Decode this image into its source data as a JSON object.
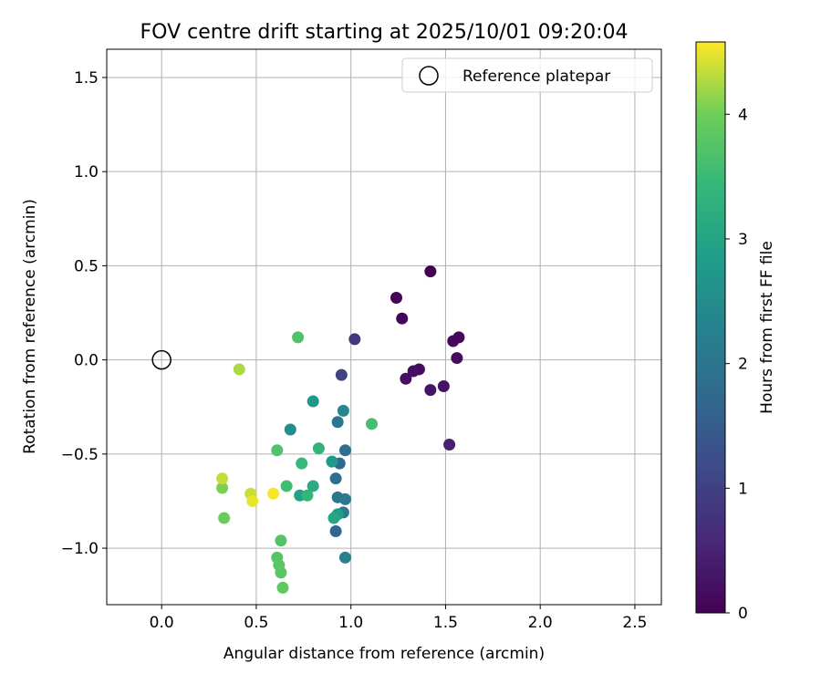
{
  "chart_data": {
    "type": "scatter",
    "title": "FOV centre drift starting at 2025/10/01 09:20:04",
    "xlabel": "Angular distance from reference (arcmin)",
    "ylabel": "Rotation from reference (arcmin)",
    "xlim": [
      -0.29,
      2.64
    ],
    "ylim": [
      -1.3,
      1.65
    ],
    "xticks": [
      0.0,
      0.5,
      1.0,
      1.5,
      2.0,
      2.5
    ],
    "xtick_labels": [
      "0.0",
      "0.5",
      "1.0",
      "1.5",
      "2.0",
      "2.5"
    ],
    "yticks": [
      -1.0,
      -0.5,
      0.0,
      0.5,
      1.0,
      1.5
    ],
    "ytick_labels": [
      "−1.0",
      "−0.5",
      "0.0",
      "0.5",
      "1.0",
      "1.5"
    ],
    "grid": true,
    "legend": {
      "position": "top-right",
      "entries": [
        "Reference platepar"
      ]
    },
    "reference_point": {
      "x": 0.0,
      "y": 0.0,
      "label": "Reference platepar"
    },
    "colorbar": {
      "label": "Hours from first FF file",
      "range": [
        0,
        4.58
      ],
      "ticks": [
        0,
        1,
        2,
        3,
        4
      ],
      "tick_labels": [
        "0",
        "1",
        "2",
        "3",
        "4"
      ],
      "colormap": "viridis"
    },
    "points": [
      {
        "x": 1.42,
        "y": 0.47,
        "h": 0.0
      },
      {
        "x": 1.24,
        "y": 0.33,
        "h": 0.05
      },
      {
        "x": 1.27,
        "y": 0.22,
        "h": 0.08
      },
      {
        "x": 1.57,
        "y": 0.12,
        "h": 0.1
      },
      {
        "x": 1.54,
        "y": 0.1,
        "h": 0.12
      },
      {
        "x": 1.56,
        "y": 0.01,
        "h": 0.15
      },
      {
        "x": 1.36,
        "y": -0.05,
        "h": 0.18
      },
      {
        "x": 1.33,
        "y": -0.06,
        "h": 0.2
      },
      {
        "x": 1.29,
        "y": -0.1,
        "h": 0.22
      },
      {
        "x": 1.49,
        "y": -0.14,
        "h": 0.25
      },
      {
        "x": 1.42,
        "y": -0.16,
        "h": 0.28
      },
      {
        "x": 1.52,
        "y": -0.45,
        "h": 0.45
      },
      {
        "x": 1.02,
        "y": 0.11,
        "h": 0.8
      },
      {
        "x": 0.95,
        "y": -0.08,
        "h": 1.05
      },
      {
        "x": 0.92,
        "y": -0.91,
        "h": 1.7
      },
      {
        "x": 0.94,
        "y": -0.55,
        "h": 1.75
      },
      {
        "x": 0.97,
        "y": -0.48,
        "h": 1.85
      },
      {
        "x": 0.92,
        "y": -0.63,
        "h": 1.9
      },
      {
        "x": 0.93,
        "y": -0.33,
        "h": 2.0
      },
      {
        "x": 0.93,
        "y": -0.73,
        "h": 2.05
      },
      {
        "x": 0.97,
        "y": -0.74,
        "h": 2.1
      },
      {
        "x": 0.96,
        "y": -0.81,
        "h": 2.15
      },
      {
        "x": 0.97,
        "y": -1.05,
        "h": 2.3
      },
      {
        "x": 0.96,
        "y": -0.27,
        "h": 2.4
      },
      {
        "x": 0.68,
        "y": -0.37,
        "h": 2.5
      },
      {
        "x": 0.8,
        "y": -0.22,
        "h": 2.7
      },
      {
        "x": 0.9,
        "y": -0.54,
        "h": 2.75
      },
      {
        "x": 0.93,
        "y": -0.82,
        "h": 2.85
      },
      {
        "x": 0.73,
        "y": -0.72,
        "h": 2.95
      },
      {
        "x": 0.91,
        "y": -0.84,
        "h": 3.05
      },
      {
        "x": 0.8,
        "y": -0.67,
        "h": 3.15
      },
      {
        "x": 0.83,
        "y": -0.47,
        "h": 3.35
      },
      {
        "x": 0.77,
        "y": -0.72,
        "h": 3.4
      },
      {
        "x": 0.74,
        "y": -0.55,
        "h": 3.45
      },
      {
        "x": 0.66,
        "y": -0.67,
        "h": 3.55
      },
      {
        "x": 1.11,
        "y": -0.34,
        "h": 3.6
      },
      {
        "x": 0.72,
        "y": 0.12,
        "h": 3.7
      },
      {
        "x": 0.61,
        "y": -0.48,
        "h": 3.72
      },
      {
        "x": 0.63,
        "y": -0.96,
        "h": 3.75
      },
      {
        "x": 0.61,
        "y": -1.05,
        "h": 3.78
      },
      {
        "x": 0.62,
        "y": -1.09,
        "h": 3.8
      },
      {
        "x": 0.63,
        "y": -1.13,
        "h": 3.82
      },
      {
        "x": 0.64,
        "y": -1.21,
        "h": 3.85
      },
      {
        "x": 0.33,
        "y": -0.84,
        "h": 3.95
      },
      {
        "x": 0.32,
        "y": -0.68,
        "h": 4.05
      },
      {
        "x": 0.41,
        "y": -0.05,
        "h": 4.25
      },
      {
        "x": 0.32,
        "y": -0.63,
        "h": 4.35
      },
      {
        "x": 0.47,
        "y": -0.71,
        "h": 4.38
      },
      {
        "x": 0.48,
        "y": -0.75,
        "h": 4.5
      },
      {
        "x": 0.59,
        "y": -0.71,
        "h": 4.55
      }
    ]
  }
}
